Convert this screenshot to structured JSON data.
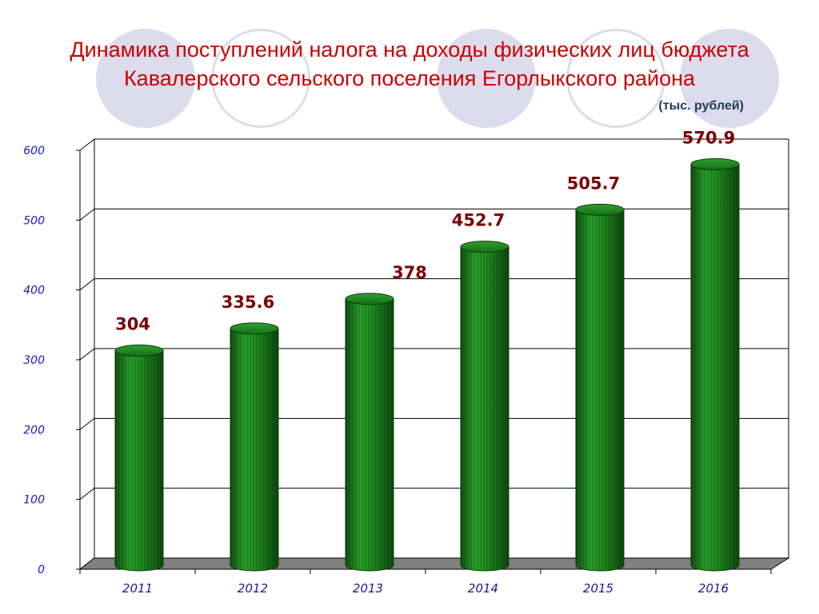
{
  "title": {
    "line1": "Динамика поступлений налога на доходы физических лиц бюджета",
    "line2": "Кавалерского сельского поселения Егорлыкского района"
  },
  "units_note": "(тыс. рублей)",
  "colors": {
    "title": "#cc0000",
    "bar": "#1f8a1f",
    "data_label": "#7a0000",
    "axis_text": "#1a1acc",
    "decor_circle": "#dcdcec"
  },
  "chart_data": {
    "type": "bar",
    "style": "3d-cylinder",
    "categories": [
      "2011",
      "2012",
      "2013",
      "2014",
      "2015",
      "2016"
    ],
    "values": [
      304,
      335.6,
      378,
      452.7,
      505.7,
      570.9
    ],
    "data_labels": [
      "304",
      "335.6",
      "378",
      "452.7",
      "505.7",
      "570.9"
    ],
    "ylim": [
      0,
      600
    ],
    "yticks": [
      "0",
      "100",
      "200",
      "300",
      "400",
      "500",
      "600"
    ],
    "grid": true,
    "legend": "none"
  }
}
